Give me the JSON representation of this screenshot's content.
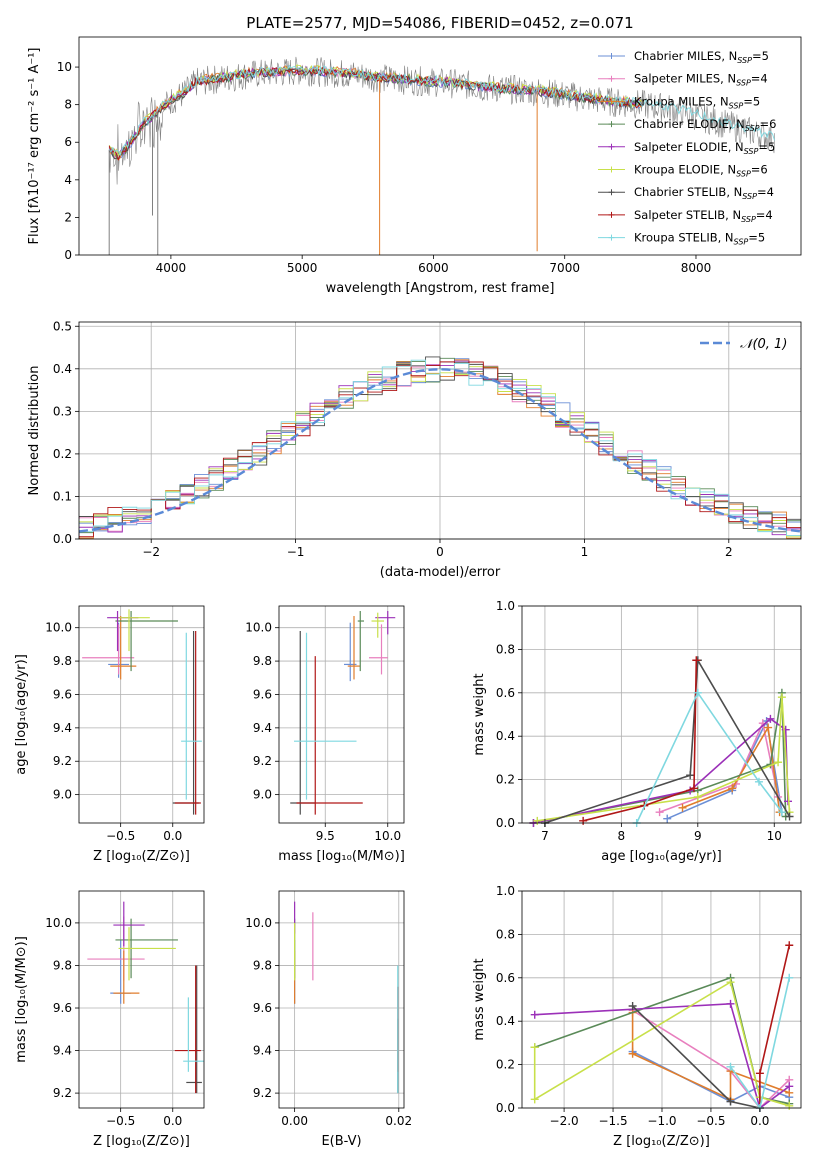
{
  "figure_title": "PLATE=2577, MJD=54086, FIBERID=0452, z=0.071",
  "colors": {
    "Chabrier MILES": "#6b8fd6",
    "Salpeter MILES": "#e87fbe",
    "Kroupa MILES": "#e07d2c",
    "Chabrier ELODIE": "#5a8a58",
    "Salpeter ELODIE": "#9b30b8",
    "Kroupa ELODIE": "#c8e04a",
    "Chabrier STELIB": "#4d4d4d",
    "Salpeter STELIB": "#b01717",
    "Kroupa STELIB": "#7fd8e0",
    "data": "#808080",
    "normal": "#5b8ad6"
  },
  "chart_data": [
    {
      "id": "spectrum",
      "type": "line",
      "title": "PLATE=2577, MJD=54086, FIBERID=0452, z=0.071",
      "xlabel": "wavelength [Angstrom, rest frame]",
      "ylabel": "Flux [fλ10⁻¹⁷ erg cm⁻² s⁻¹ A⁻¹]",
      "xlim": [
        3300,
        8800
      ],
      "ylim": [
        0,
        11.6
      ],
      "xticks": [
        4000,
        5000,
        6000,
        7000,
        8000
      ],
      "yticks": [
        0,
        2,
        4,
        6,
        8,
        10
      ],
      "grid": false,
      "legend_position": "right",
      "legend": [
        {
          "name": "Chabrier MILES",
          "nssp": "5"
        },
        {
          "name": "Salpeter MILES",
          "nssp": "4"
        },
        {
          "name": "Kroupa MILES",
          "nssp": "5"
        },
        {
          "name": "Chabrier ELODIE",
          "nssp": "6"
        },
        {
          "name": "Salpeter ELODIE",
          "nssp": "5"
        },
        {
          "name": "Kroupa ELODIE",
          "nssp": "6"
        },
        {
          "name": "Chabrier STELIB",
          "nssp": "4"
        },
        {
          "name": "Salpeter STELIB",
          "nssp": "4"
        },
        {
          "name": "Kroupa STELIB",
          "nssp": "5"
        }
      ],
      "continuum": {
        "x": [
          3530,
          3600,
          3700,
          3800,
          3900,
          4000,
          4100,
          4200,
          4400,
          4600,
          4800,
          5000,
          5200,
          5400,
          5600,
          5800,
          6000,
          6200,
          6400,
          6600,
          6800,
          7000,
          7200,
          7400,
          7600,
          7800,
          8000,
          8200,
          8400,
          8600
        ],
        "y": [
          5.6,
          5.2,
          6.0,
          7.0,
          7.6,
          8.2,
          8.6,
          9.2,
          9.4,
          9.6,
          9.7,
          9.8,
          9.7,
          9.6,
          9.4,
          9.3,
          9.2,
          9.1,
          8.9,
          8.8,
          8.7,
          8.5,
          8.3,
          8.1,
          8.0,
          7.8,
          7.4,
          7.0,
          6.6,
          6.2
        ]
      }
    },
    {
      "id": "residual-histogram",
      "type": "bar",
      "xlabel": "(data-model)/error",
      "ylabel": "Normed distribution",
      "xlim": [
        -2.5,
        2.5
      ],
      "ylim": [
        0,
        0.51
      ],
      "xticks": [
        -2,
        -1,
        0,
        1,
        2
      ],
      "yticks": [
        0.0,
        0.1,
        0.2,
        0.3,
        0.4,
        0.5
      ],
      "grid": true,
      "legend_position": "top-right",
      "legend": "𝒩(0, 1)"
    },
    {
      "id": "age-vs-Z",
      "type": "scatter",
      "xlabel": "Z [log₁₀(Z/Z⊙)]",
      "ylabel": "age  [log₁₀(age/yr)]",
      "xlim": [
        -0.9,
        0.3
      ],
      "ylim": [
        8.83,
        10.13
      ],
      "xticks": [
        -0.5,
        0.0
      ],
      "yticks": [
        9.0,
        9.2,
        9.4,
        9.6,
        9.8,
        10.0
      ],
      "grid": true,
      "points": [
        {
          "series": "Chabrier MILES",
          "x": -0.52,
          "y": 9.78,
          "xerr": [
            0.1,
            0.1
          ],
          "yerr": [
            0.08,
            0.25
          ]
        },
        {
          "series": "Salpeter MILES",
          "x": -0.52,
          "y": 9.82,
          "xerr": [
            0.35,
            0.15
          ],
          "yerr": [
            0.1,
            0.2
          ]
        },
        {
          "series": "Kroupa MILES",
          "x": -0.5,
          "y": 9.77,
          "xerr": [
            0.1,
            0.15
          ],
          "yerr": [
            0.08,
            0.3
          ]
        },
        {
          "series": "Chabrier ELODIE",
          "x": -0.4,
          "y": 10.04,
          "xerr": [
            0.15,
            0.45
          ],
          "yerr": [
            0.3,
            0.06
          ]
        },
        {
          "series": "Salpeter ELODIE",
          "x": -0.53,
          "y": 10.06,
          "xerr": [
            0.1,
            0.2
          ],
          "yerr": [
            0.2,
            0.04
          ]
        },
        {
          "series": "Kroupa ELODIE",
          "x": -0.42,
          "y": 10.06,
          "xerr": [
            0.1,
            0.2
          ],
          "yerr": [
            0.2,
            0.05
          ]
        },
        {
          "series": "Chabrier STELIB",
          "x": 0.2,
          "y": 8.95,
          "xerr": [
            0.2,
            0.05
          ],
          "yerr": [
            0.07,
            1.03
          ]
        },
        {
          "series": "Salpeter STELIB",
          "x": 0.22,
          "y": 8.95,
          "xerr": [
            0.2,
            0.05
          ],
          "yerr": [
            0.07,
            1.03
          ]
        },
        {
          "series": "Kroupa STELIB",
          "x": 0.13,
          "y": 9.32,
          "xerr": [
            0.05,
            0.15
          ],
          "yerr": [
            0.35,
            0.65
          ]
        }
      ]
    },
    {
      "id": "age-vs-mass",
      "type": "scatter",
      "xlabel": "mass [log₁₀(M/M⊙)]",
      "ylabel": "",
      "xlim": [
        9.13,
        10.13
      ],
      "ylim": [
        8.83,
        10.13
      ],
      "xticks": [
        9.5,
        10.0
      ],
      "yticks": [
        9.0,
        9.2,
        9.4,
        9.6,
        9.8,
        10.0
      ],
      "grid": true,
      "points": [
        {
          "series": "Chabrier MILES",
          "x": 9.7,
          "y": 9.78,
          "xerr": [
            0.05,
            0.05
          ],
          "yerr": [
            0.1,
            0.25
          ]
        },
        {
          "series": "Salpeter MILES",
          "x": 9.95,
          "y": 9.82,
          "xerr": [
            0.1,
            0.05
          ],
          "yerr": [
            0.1,
            0.2
          ]
        },
        {
          "series": "Kroupa MILES",
          "x": 9.73,
          "y": 9.77,
          "xerr": [
            0.05,
            0.05
          ],
          "yerr": [
            0.08,
            0.3
          ]
        },
        {
          "series": "Chabrier ELODIE",
          "x": 9.78,
          "y": 10.04,
          "xerr": [
            0.02,
            0.03
          ],
          "yerr": [
            0.3,
            0.06
          ]
        },
        {
          "series": "Salpeter ELODIE",
          "x": 10.0,
          "y": 10.06,
          "xerr": [
            0.1,
            0.06
          ],
          "yerr": [
            0.1,
            0.04
          ]
        },
        {
          "series": "Kroupa ELODIE",
          "x": 9.92,
          "y": 10.04,
          "xerr": [
            0.05,
            0.05
          ],
          "yerr": [
            0.1,
            0.05
          ]
        },
        {
          "series": "Chabrier STELIB",
          "x": 9.3,
          "y": 8.95,
          "xerr": [
            0.08,
            0.12
          ],
          "yerr": [
            0.07,
            1.03
          ]
        },
        {
          "series": "Salpeter STELIB",
          "x": 9.42,
          "y": 8.95,
          "xerr": [
            0.15,
            0.38
          ],
          "yerr": [
            0.07,
            0.88
          ]
        },
        {
          "series": "Kroupa STELIB",
          "x": 9.35,
          "y": 9.32,
          "xerr": [
            0.1,
            0.4
          ],
          "yerr": [
            0.35,
            0.65
          ]
        }
      ]
    },
    {
      "id": "weight-vs-age",
      "type": "line",
      "xlabel": "age  [log₁₀(age/yr)]",
      "ylabel": "mass weight",
      "xlim": [
        6.7,
        10.35
      ],
      "ylim": [
        0,
        1.0
      ],
      "xticks": [
        7,
        8,
        9,
        10
      ],
      "yticks": [
        0.0,
        0.2,
        0.4,
        0.6,
        0.8,
        1.0
      ],
      "grid": true,
      "series": [
        {
          "name": "Chabrier MILES",
          "x": [
            8.6,
            9.45,
            9.9,
            10.1
          ],
          "y": [
            0.02,
            0.15,
            0.47,
            0.05
          ]
        },
        {
          "name": "Salpeter MILES",
          "x": [
            8.5,
            9.5,
            9.85,
            10.05
          ],
          "y": [
            0.05,
            0.18,
            0.46,
            0.12
          ]
        },
        {
          "name": "Kroupa MILES",
          "x": [
            8.8,
            9.45,
            9.92,
            10.07
          ],
          "y": [
            0.07,
            0.16,
            0.44,
            0.05
          ]
        },
        {
          "name": "Chabrier ELODIE",
          "x": [
            6.85,
            9.0,
            9.95,
            10.1,
            10.15
          ],
          "y": [
            0.0,
            0.15,
            0.27,
            0.6,
            0.03
          ]
        },
        {
          "name": "Salpeter ELODIE",
          "x": [
            6.85,
            8.9,
            9.95,
            10.15,
            10.18
          ],
          "y": [
            0.0,
            0.15,
            0.48,
            0.43,
            0.1
          ]
        },
        {
          "name": "Kroupa ELODIE",
          "x": [
            6.9,
            9.0,
            10.05,
            10.1,
            10.2
          ],
          "y": [
            0.01,
            0.12,
            0.28,
            0.58,
            0.05
          ]
        },
        {
          "name": "Chabrier STELIB",
          "x": [
            7.0,
            8.9,
            9.0,
            10.2
          ],
          "y": [
            0.0,
            0.22,
            0.75,
            0.03
          ]
        },
        {
          "name": "Salpeter STELIB",
          "x": [
            7.5,
            8.3,
            8.95,
            8.98
          ],
          "y": [
            0.01,
            0.08,
            0.16,
            0.75
          ]
        },
        {
          "name": "Kroupa STELIB",
          "x": [
            8.2,
            9.0,
            9.8,
            10.1
          ],
          "y": [
            0.0,
            0.6,
            0.19,
            0.05
          ]
        }
      ]
    },
    {
      "id": "mass-vs-Z",
      "type": "scatter",
      "xlabel": "Z [log₁₀(Z/Z⊙)]",
      "ylabel": "mass [log₁₀(M/M⊙)]",
      "xlim": [
        -0.9,
        0.3
      ],
      "ylim": [
        9.13,
        10.15
      ],
      "xticks": [
        -0.5,
        0.0
      ],
      "yticks": [
        9.2,
        9.4,
        9.6,
        9.8,
        10.0
      ],
      "grid": true,
      "points": [
        {
          "series": "Chabrier MILES",
          "x": -0.5,
          "y": 9.67,
          "xerr": [
            0.1,
            0.1
          ],
          "yerr": [
            0.05,
            0.25
          ]
        },
        {
          "series": "Salpeter MILES",
          "x": -0.47,
          "y": 9.83,
          "xerr": [
            0.35,
            0.2
          ],
          "yerr": [
            0.1,
            0.2
          ]
        },
        {
          "series": "Kroupa MILES",
          "x": -0.47,
          "y": 9.67,
          "xerr": [
            0.1,
            0.15
          ],
          "yerr": [
            0.05,
            0.2
          ]
        },
        {
          "series": "Chabrier ELODIE",
          "x": -0.4,
          "y": 9.92,
          "xerr": [
            0.15,
            0.45
          ],
          "yerr": [
            0.18,
            0.1
          ]
        },
        {
          "series": "Salpeter ELODIE",
          "x": -0.47,
          "y": 9.99,
          "xerr": [
            0.1,
            0.2
          ],
          "yerr": [
            0.1,
            0.11
          ]
        },
        {
          "series": "Kroupa ELODIE",
          "x": -0.42,
          "y": 9.88,
          "xerr": [
            0.1,
            0.45
          ],
          "yerr": [
            0.15,
            0.1
          ]
        },
        {
          "series": "Chabrier STELIB",
          "x": 0.23,
          "y": 9.25,
          "xerr": [
            0.1,
            0.05
          ],
          "yerr": [
            0.05,
            0.55
          ]
        },
        {
          "series": "Salpeter STELIB",
          "x": 0.22,
          "y": 9.4,
          "xerr": [
            0.2,
            0.05
          ],
          "yerr": [
            0.2,
            0.4
          ]
        },
        {
          "series": "Kroupa STELIB",
          "x": 0.15,
          "y": 9.35,
          "xerr": [
            0.05,
            0.15
          ],
          "yerr": [
            0.05,
            0.3
          ]
        }
      ]
    },
    {
      "id": "mass-vs-EBV",
      "type": "scatter",
      "xlabel": "E(B-V)",
      "ylabel": "",
      "xlim": [
        -0.003,
        0.021
      ],
      "ylim": [
        9.13,
        10.15
      ],
      "xticks": [
        0.0,
        0.02
      ],
      "yticks": [
        9.2,
        9.4,
        9.6,
        9.8,
        10.0
      ],
      "grid": true,
      "points": [
        {
          "series": "Chabrier MILES",
          "x": 0.0,
          "y": 9.67,
          "xerr": [
            0,
            0
          ],
          "yerr": [
            0.05,
            0.25
          ]
        },
        {
          "series": "Salpeter MILES",
          "x": 0.0035,
          "y": 9.83,
          "xerr": [
            0,
            0
          ],
          "yerr": [
            0.1,
            0.22
          ]
        },
        {
          "series": "Kroupa MILES",
          "x": 0.0,
          "y": 9.67,
          "xerr": [
            0,
            0
          ],
          "yerr": [
            0.05,
            0.2
          ]
        },
        {
          "series": "Chabrier ELODIE",
          "x": 0.0,
          "y": 9.92,
          "xerr": [
            0,
            0
          ],
          "yerr": [
            0.18,
            0.1
          ]
        },
        {
          "series": "Salpeter ELODIE",
          "x": 0.0,
          "y": 10.0,
          "xerr": [
            0,
            0
          ],
          "yerr": [
            0.05,
            0.1
          ]
        },
        {
          "series": "Kroupa ELODIE",
          "x": 0.0,
          "y": 9.88,
          "xerr": [
            0,
            0
          ],
          "yerr": [
            0.15,
            0.12
          ]
        },
        {
          "series": "Chabrier STELIB",
          "x": 0.0198,
          "y": 9.25,
          "xerr": [
            0,
            0
          ],
          "yerr": [
            0.05,
            0.3
          ]
        },
        {
          "series": "Salpeter STELIB",
          "x": 0.0198,
          "y": 9.4,
          "xerr": [
            0,
            0
          ],
          "yerr": [
            0.1,
            0.3
          ]
        },
        {
          "series": "Kroupa STELIB",
          "x": 0.0198,
          "y": 9.5,
          "xerr": [
            0,
            0
          ],
          "yerr": [
            0.3,
            0.3
          ]
        }
      ]
    },
    {
      "id": "weight-vs-Z",
      "type": "line",
      "xlabel": "Z [log₁₀(Z/Z⊙)]",
      "ylabel": "mass weight",
      "xlim": [
        -2.43,
        0.42
      ],
      "ylim": [
        0,
        1.0
      ],
      "xticks": [
        -2.0,
        -1.5,
        -1.0,
        -0.5,
        0.0
      ],
      "yticks": [
        0.0,
        0.2,
        0.4,
        0.6,
        0.8,
        1.0
      ],
      "grid": true,
      "series": [
        {
          "name": "Chabrier MILES",
          "x": [
            -1.3,
            -0.3,
            0.0,
            0.3
          ],
          "y": [
            0.26,
            0.03,
            0.1,
            0.05
          ]
        },
        {
          "name": "Salpeter MILES",
          "x": [
            -1.3,
            -0.3,
            0.0,
            0.3
          ],
          "y": [
            0.45,
            0.17,
            0.0,
            0.13
          ]
        },
        {
          "name": "Kroupa MILES",
          "x": [
            -1.3,
            -1.3,
            -0.3,
            -0.3,
            0.3
          ],
          "y": [
            0.44,
            0.25,
            0.04,
            0.17,
            0.07
          ]
        },
        {
          "name": "Chabrier ELODIE",
          "x": [
            -2.3,
            -0.3,
            0.0,
            0.3
          ],
          "y": [
            0.28,
            0.6,
            0.05,
            0.02
          ]
        },
        {
          "name": "Salpeter ELODIE",
          "x": [
            -2.3,
            -0.3,
            0.0,
            0.3
          ],
          "y": [
            0.43,
            0.48,
            0.0,
            0.1
          ]
        },
        {
          "name": "Kroupa ELODIE",
          "x": [
            -2.3,
            -2.3,
            -0.3,
            0.0,
            0.3
          ],
          "y": [
            0.28,
            0.04,
            0.58,
            0.05,
            0.01
          ]
        },
        {
          "name": "Chabrier STELIB",
          "x": [
            -1.3,
            -0.3,
            0.0
          ],
          "y": [
            0.47,
            0.03,
            0.0
          ]
        },
        {
          "name": "Salpeter STELIB",
          "x": [
            0.0,
            0.0,
            0.3
          ],
          "y": [
            0.0,
            0.16,
            0.75
          ]
        },
        {
          "name": "Kroupa STELIB",
          "x": [
            -0.3,
            0.0,
            0.3
          ],
          "y": [
            0.19,
            0.0,
            0.6
          ]
        }
      ]
    }
  ]
}
